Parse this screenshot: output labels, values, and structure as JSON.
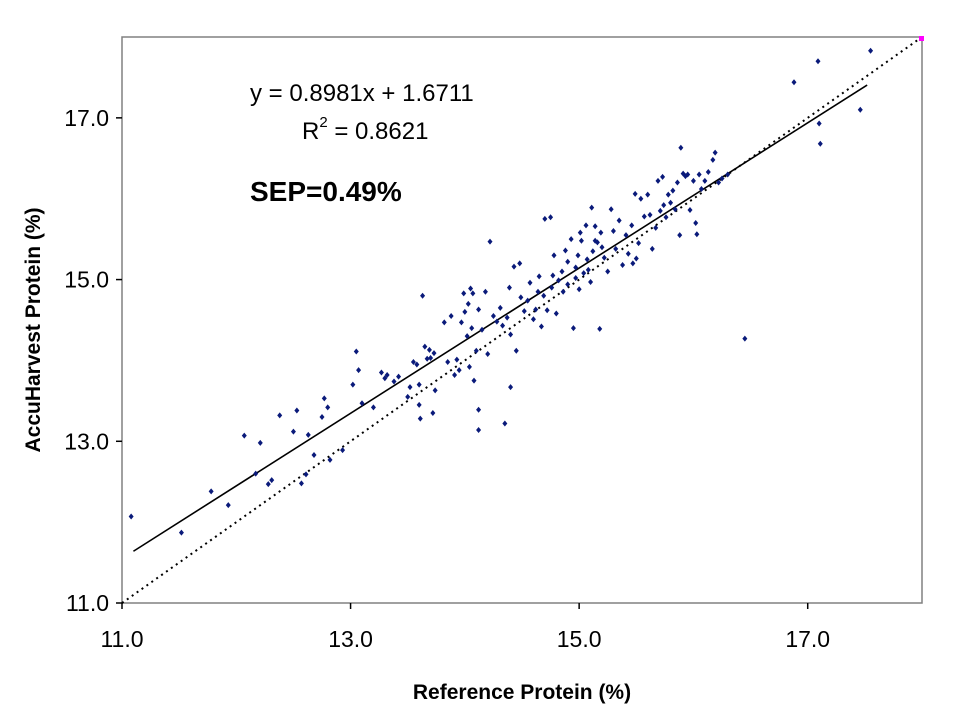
{
  "chart_data": {
    "type": "scatter",
    "xlabel": "Reference Protein (%)",
    "ylabel": "AccuHarvest Protein (%)",
    "xlim": [
      11.0,
      18.0
    ],
    "ylim": [
      11.0,
      18.0
    ],
    "x_ticks": [
      "11.0",
      "13.0",
      "15.0",
      "17.0"
    ],
    "y_ticks": [
      "11.0",
      "13.0",
      "15.0",
      "17.0"
    ],
    "grid": false,
    "legend": "none",
    "annotations": {
      "equation": "y = 0.8981x + 1.6711",
      "r2_prefix": "R",
      "r2_sup": "2",
      "r2_value": " = 0.8621",
      "sep": "SEP=0.49%"
    },
    "trendline": {
      "slope": 0.8981,
      "intercept": 1.6711,
      "x_range": [
        11.1,
        17.52
      ]
    },
    "identity_line": {
      "style": "dotted",
      "x_range": [
        11.0,
        18.0
      ]
    },
    "colors": {
      "points": "#0a1a7a",
      "trendline": "#000000",
      "identity": "#000000",
      "corner_marker": "#ff00ff",
      "frame": "#808080"
    },
    "points": [
      [
        11.08,
        12.07
      ],
      [
        11.52,
        11.87
      ],
      [
        11.78,
        12.38
      ],
      [
        11.93,
        12.21
      ],
      [
        12.07,
        13.07
      ],
      [
        12.17,
        12.6
      ],
      [
        12.21,
        12.98
      ],
      [
        12.28,
        12.47
      ],
      [
        12.31,
        12.52
      ],
      [
        12.38,
        13.32
      ],
      [
        12.5,
        13.12
      ],
      [
        12.53,
        13.38
      ],
      [
        12.57,
        12.48
      ],
      [
        12.61,
        12.59
      ],
      [
        12.63,
        13.08
      ],
      [
        12.68,
        12.83
      ],
      [
        12.75,
        13.3
      ],
      [
        12.77,
        13.53
      ],
      [
        12.8,
        13.42
      ],
      [
        12.82,
        12.77
      ],
      [
        12.93,
        12.89
      ],
      [
        13.02,
        13.7
      ],
      [
        13.05,
        14.11
      ],
      [
        13.07,
        13.88
      ],
      [
        13.1,
        13.47
      ],
      [
        13.2,
        13.42
      ],
      [
        13.27,
        13.85
      ],
      [
        13.3,
        13.78
      ],
      [
        13.32,
        13.82
      ],
      [
        13.38,
        13.74
      ],
      [
        13.42,
        13.8
      ],
      [
        13.5,
        13.55
      ],
      [
        13.52,
        13.67
      ],
      [
        13.55,
        13.98
      ],
      [
        13.58,
        13.95
      ],
      [
        13.6,
        13.7
      ],
      [
        13.6,
        13.45
      ],
      [
        13.61,
        13.28
      ],
      [
        13.63,
        14.8
      ],
      [
        13.65,
        14.17
      ],
      [
        13.67,
        14.02
      ],
      [
        13.69,
        14.13
      ],
      [
        13.7,
        14.03
      ],
      [
        13.72,
        13.35
      ],
      [
        13.73,
        14.09
      ],
      [
        13.74,
        13.63
      ],
      [
        13.82,
        14.47
      ],
      [
        13.85,
        13.98
      ],
      [
        13.88,
        14.55
      ],
      [
        13.91,
        13.82
      ],
      [
        13.93,
        14.01
      ],
      [
        13.95,
        13.88
      ],
      [
        13.97,
        14.47
      ],
      [
        13.99,
        14.83
      ],
      [
        14.0,
        14.6
      ],
      [
        14.02,
        14.3
      ],
      [
        14.03,
        14.7
      ],
      [
        14.04,
        13.92
      ],
      [
        14.05,
        14.89
      ],
      [
        14.06,
        14.4
      ],
      [
        14.07,
        14.83
      ],
      [
        14.08,
        13.75
      ],
      [
        14.1,
        14.12
      ],
      [
        14.12,
        14.63
      ],
      [
        14.12,
        13.39
      ],
      [
        14.12,
        13.14
      ],
      [
        14.15,
        14.38
      ],
      [
        14.18,
        14.85
      ],
      [
        14.2,
        14.08
      ],
      [
        14.22,
        15.47
      ],
      [
        14.25,
        14.55
      ],
      [
        14.28,
        14.48
      ],
      [
        14.31,
        14.65
      ],
      [
        14.33,
        14.43
      ],
      [
        14.35,
        13.22
      ],
      [
        14.37,
        14.53
      ],
      [
        14.39,
        14.9
      ],
      [
        14.4,
        14.32
      ],
      [
        14.4,
        13.67
      ],
      [
        14.43,
        15.16
      ],
      [
        14.45,
        14.12
      ],
      [
        14.48,
        15.2
      ],
      [
        14.49,
        14.78
      ],
      [
        14.52,
        14.61
      ],
      [
        14.55,
        14.74
      ],
      [
        14.57,
        14.96
      ],
      [
        14.6,
        14.51
      ],
      [
        14.62,
        14.63
      ],
      [
        14.64,
        14.85
      ],
      [
        14.65,
        15.04
      ],
      [
        14.67,
        14.42
      ],
      [
        14.69,
        14.8
      ],
      [
        14.7,
        15.75
      ],
      [
        14.72,
        14.62
      ],
      [
        14.75,
        15.77
      ],
      [
        14.76,
        14.9
      ],
      [
        14.77,
        15.05
      ],
      [
        14.78,
        15.3
      ],
      [
        14.8,
        14.58
      ],
      [
        14.82,
        14.99
      ],
      [
        14.85,
        15.1
      ],
      [
        14.86,
        14.85
      ],
      [
        14.88,
        15.36
      ],
      [
        14.9,
        14.94
      ],
      [
        14.9,
        15.22
      ],
      [
        14.93,
        15.5
      ],
      [
        14.95,
        14.4
      ],
      [
        14.97,
        15.15
      ],
      [
        14.97,
        15.02
      ],
      [
        14.99,
        15.3
      ],
      [
        15.0,
        14.88
      ],
      [
        15.01,
        15.58
      ],
      [
        15.02,
        15.48
      ],
      [
        15.04,
        15.08
      ],
      [
        15.06,
        15.67
      ],
      [
        15.07,
        15.25
      ],
      [
        15.08,
        15.12
      ],
      [
        15.1,
        14.97
      ],
      [
        15.11,
        15.89
      ],
      [
        15.12,
        15.35
      ],
      [
        15.14,
        15.66
      ],
      [
        15.14,
        15.48
      ],
      [
        15.16,
        15.46
      ],
      [
        15.18,
        14.39
      ],
      [
        15.19,
        15.58
      ],
      [
        15.2,
        15.4
      ],
      [
        15.22,
        15.27
      ],
      [
        15.25,
        15.1
      ],
      [
        15.28,
        15.87
      ],
      [
        15.3,
        15.6
      ],
      [
        15.32,
        15.38
      ],
      [
        15.35,
        15.73
      ],
      [
        15.38,
        15.18
      ],
      [
        15.41,
        15.55
      ],
      [
        15.43,
        15.32
      ],
      [
        15.46,
        15.67
      ],
      [
        15.47,
        15.2
      ],
      [
        15.49,
        16.06
      ],
      [
        15.5,
        15.26
      ],
      [
        15.52,
        15.45
      ],
      [
        15.54,
        16.0
      ],
      [
        15.57,
        15.78
      ],
      [
        15.6,
        16.05
      ],
      [
        15.62,
        15.8
      ],
      [
        15.64,
        15.38
      ],
      [
        15.67,
        15.64
      ],
      [
        15.69,
        16.22
      ],
      [
        15.71,
        15.85
      ],
      [
        15.73,
        16.27
      ],
      [
        15.74,
        15.92
      ],
      [
        15.76,
        15.77
      ],
      [
        15.78,
        16.05
      ],
      [
        15.8,
        15.95
      ],
      [
        15.82,
        16.1
      ],
      [
        15.84,
        15.87
      ],
      [
        15.86,
        16.2
      ],
      [
        15.88,
        15.55
      ],
      [
        15.89,
        16.63
      ],
      [
        15.91,
        16.31
      ],
      [
        15.93,
        16.28
      ],
      [
        15.95,
        16.3
      ],
      [
        15.97,
        15.86
      ],
      [
        16.0,
        16.22
      ],
      [
        16.02,
        15.7
      ],
      [
        16.03,
        15.56
      ],
      [
        16.05,
        16.3
      ],
      [
        16.07,
        16.12
      ],
      [
        16.1,
        16.22
      ],
      [
        16.13,
        16.33
      ],
      [
        16.17,
        16.48
      ],
      [
        16.19,
        16.57
      ],
      [
        16.22,
        16.2
      ],
      [
        16.25,
        16.25
      ],
      [
        16.3,
        16.3
      ],
      [
        16.45,
        14.27
      ],
      [
        16.88,
        17.44
      ],
      [
        17.09,
        17.7
      ],
      [
        17.1,
        16.93
      ],
      [
        17.11,
        16.68
      ],
      [
        17.46,
        17.1
      ],
      [
        17.55,
        17.83
      ]
    ]
  }
}
